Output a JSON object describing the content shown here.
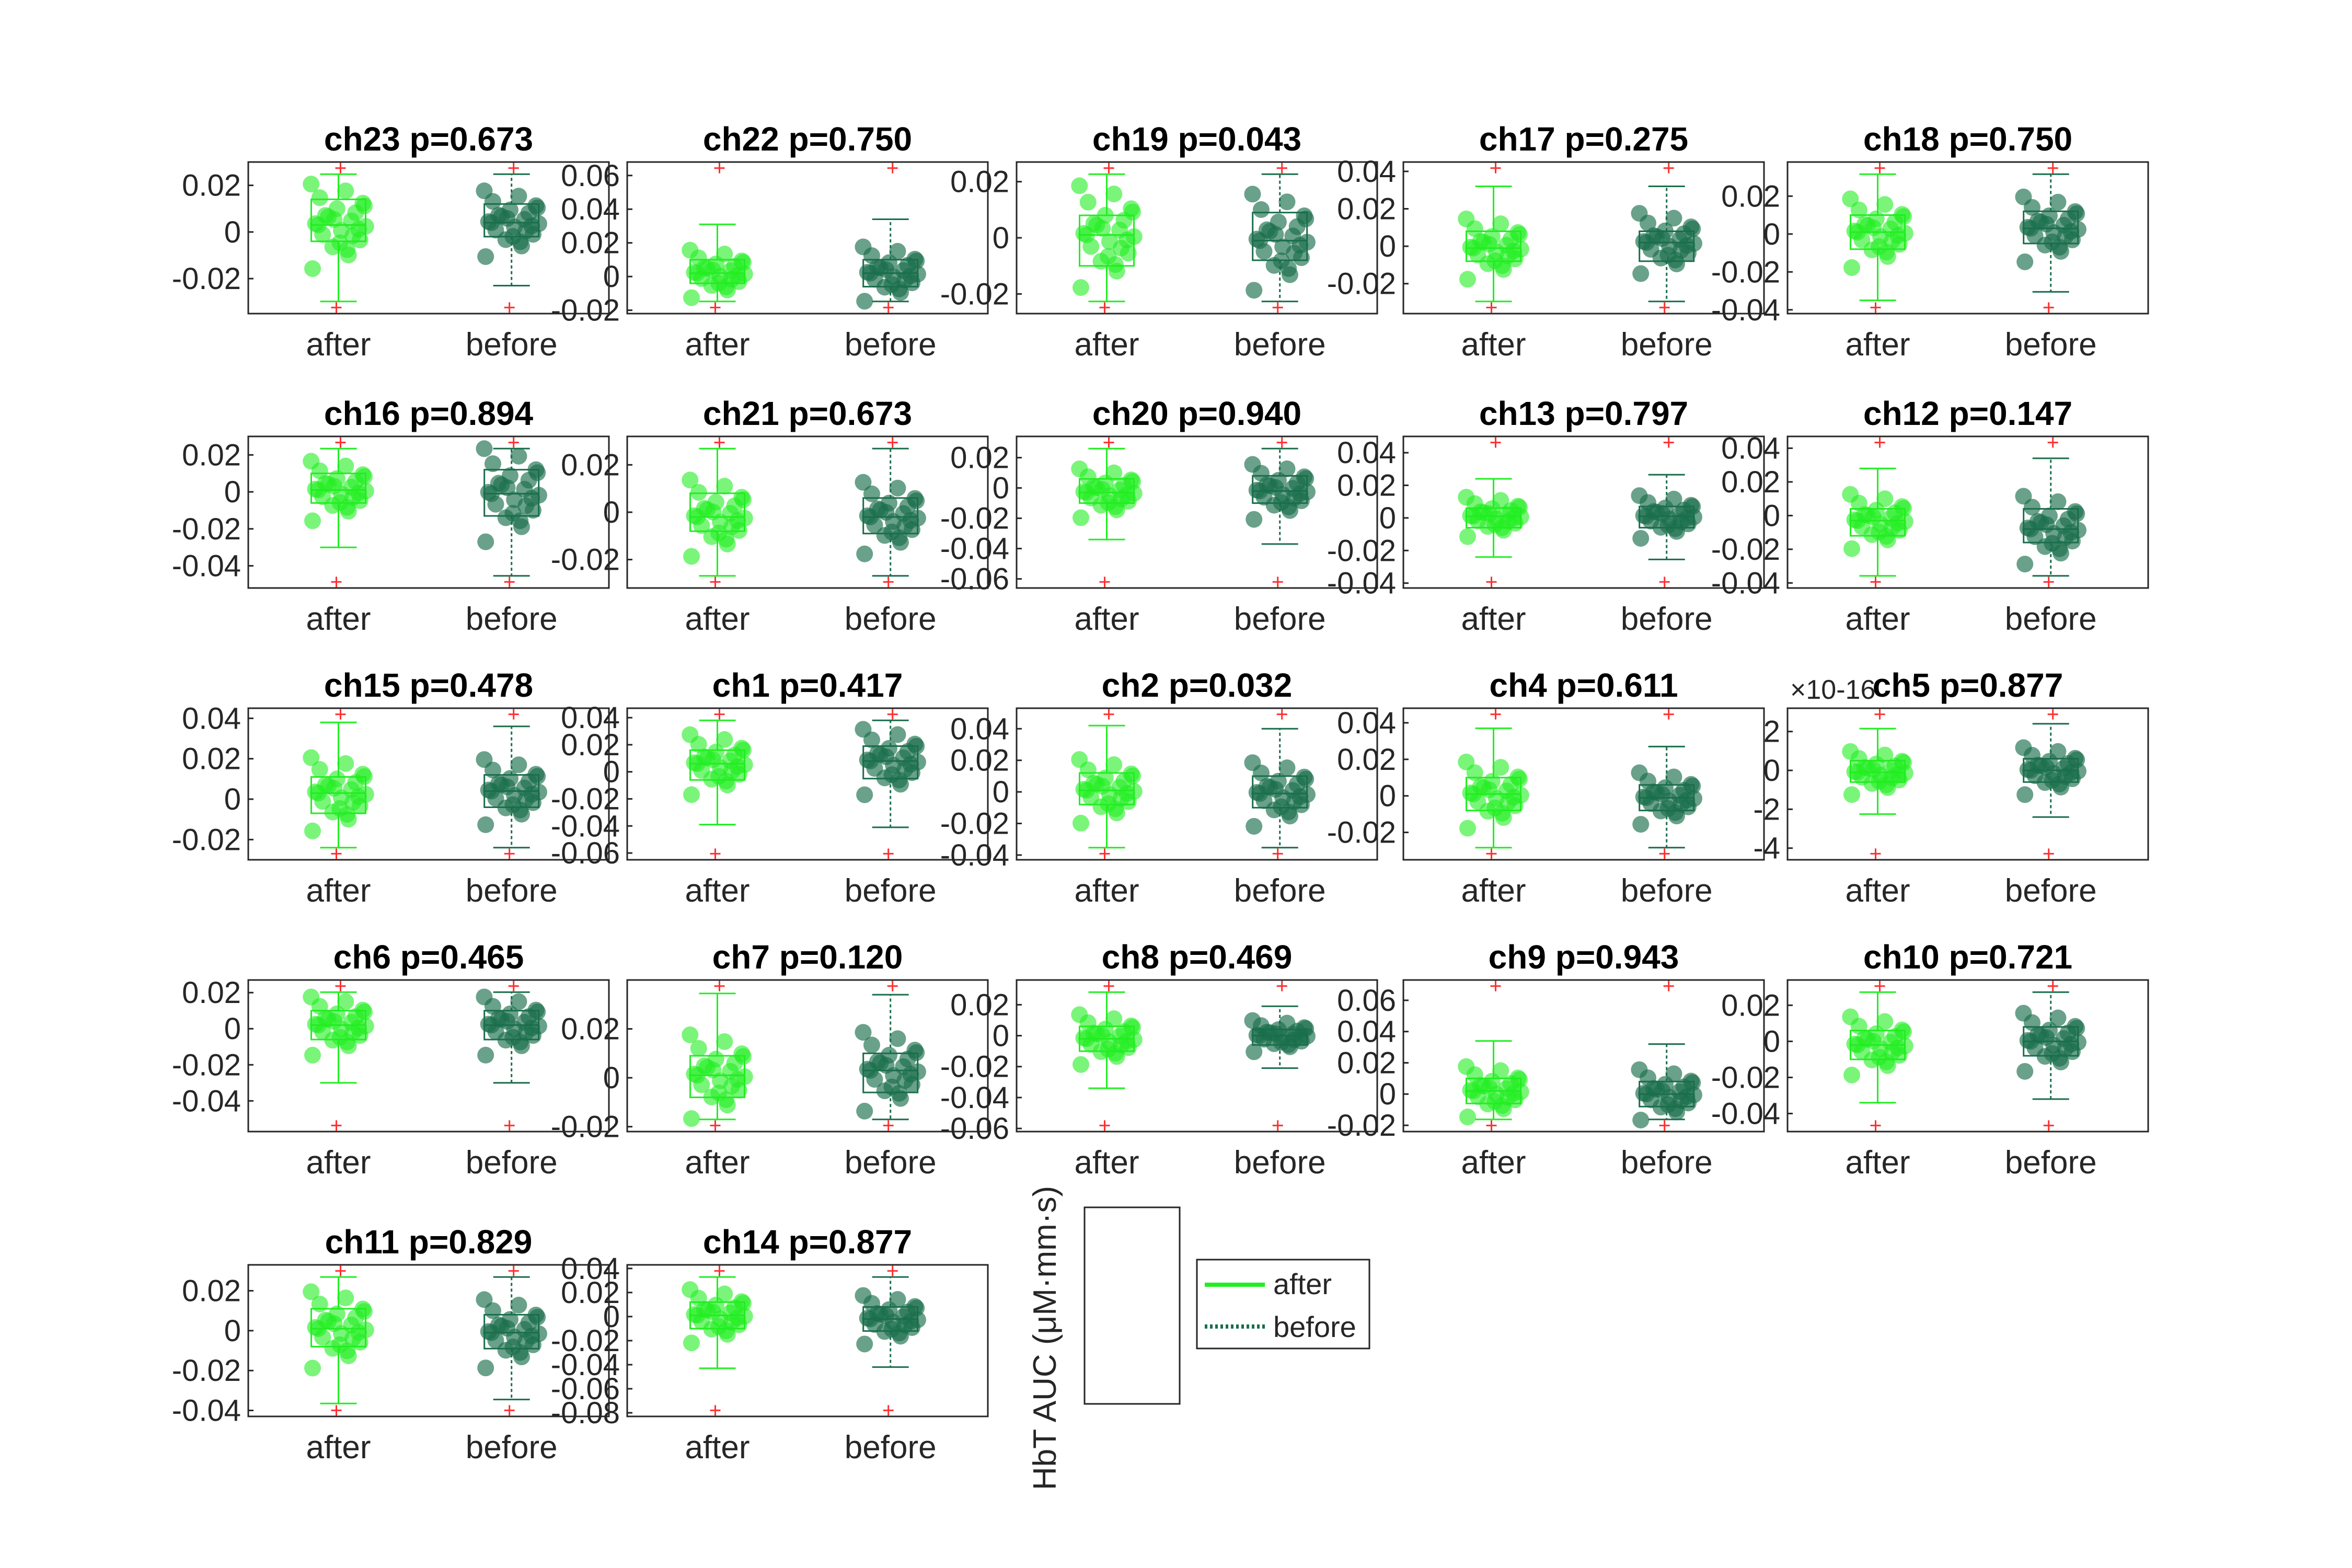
{
  "figure": {
    "ylabel": "HbT AUC (μM·mm·s)",
    "colors": {
      "after": "#22ee22",
      "before": "#1a6e4c",
      "outlier": "#ff3030",
      "axis": "#262626"
    }
  },
  "legend": {
    "entries": [
      {
        "label": "after",
        "style": "solid",
        "color": "#22ee22"
      },
      {
        "label": "before",
        "style": "dotted",
        "color": "#1a6e4c"
      }
    ]
  },
  "chart_data": [
    {
      "type": "box",
      "title": "ch23 p=0.673",
      "categories": [
        "after",
        "before"
      ],
      "ylim": [
        -0.035,
        0.03
      ],
      "yticks": [
        "0.02",
        "0",
        "-0.02"
      ],
      "ytick_values": [
        0.02,
        0,
        -0.02
      ],
      "box": {
        "after": [
          -0.004,
          0.003,
          0.014
        ],
        "before": [
          -0.002,
          0.004,
          0.012
        ]
      }
    },
    {
      "type": "box",
      "title": "ch22 p=0.750",
      "categories": [
        "after",
        "before"
      ],
      "ylim": [
        -0.022,
        0.068
      ],
      "yticks": [
        "0.06",
        "0.04",
        "0.02",
        "0",
        "-0.02"
      ],
      "ytick_values": [
        0.06,
        0.04,
        0.02,
        0,
        -0.02
      ],
      "box": {
        "after": [
          -0.004,
          0.002,
          0.01
        ],
        "before": [
          -0.006,
          0.002,
          0.01
        ]
      }
    },
    {
      "type": "box",
      "title": "ch19 p=0.043",
      "categories": [
        "after",
        "before"
      ],
      "ylim": [
        -0.027,
        0.027
      ],
      "yticks": [
        "0.02",
        "0",
        "-0.02"
      ],
      "ytick_values": [
        0.02,
        0,
        -0.02
      ],
      "box": {
        "after": [
          -0.01,
          0.001,
          0.008
        ],
        "before": [
          -0.008,
          -0.001,
          0.009
        ]
      }
    },
    {
      "type": "box",
      "title": "ch17 p=0.275",
      "categories": [
        "after",
        "before"
      ],
      "ylim": [
        -0.036,
        0.045
      ],
      "yticks": [
        "0.04",
        "0.02",
        "0",
        "-0.02"
      ],
      "ytick_values": [
        0.04,
        0.02,
        0,
        -0.02
      ],
      "box": {
        "after": [
          -0.008,
          -0.001,
          0.008
        ],
        "before": [
          -0.008,
          0.002,
          0.008
        ]
      }
    },
    {
      "type": "box",
      "title": "ch18 p=0.750",
      "categories": [
        "after",
        "before"
      ],
      "ylim": [
        -0.042,
        0.038
      ],
      "yticks": [
        "0.02",
        "0",
        "-0.02",
        "-0.04"
      ],
      "ytick_values": [
        0.02,
        0,
        -0.02,
        -0.04
      ],
      "box": {
        "after": [
          -0.008,
          0.001,
          0.01
        ],
        "before": [
          -0.005,
          0.003,
          0.012
        ]
      }
    },
    {
      "type": "box",
      "title": "ch16 p=0.894",
      "categories": [
        "after",
        "before"
      ],
      "ylim": [
        -0.052,
        0.03
      ],
      "yticks": [
        "0.02",
        "0",
        "-0.02",
        "-0.04"
      ],
      "ytick_values": [
        0.02,
        0,
        -0.02,
        -0.04
      ],
      "box": {
        "after": [
          -0.006,
          0.001,
          0.01
        ],
        "before": [
          -0.013,
          -0.001,
          0.012
        ]
      }
    },
    {
      "type": "box",
      "title": "ch21 p=0.673",
      "categories": [
        "after",
        "before"
      ],
      "ylim": [
        -0.032,
        0.032
      ],
      "yticks": [
        "0.02",
        "0",
        "-0.02"
      ],
      "ytick_values": [
        0.02,
        0,
        -0.02
      ],
      "box": {
        "after": [
          -0.008,
          -0.002,
          0.008
        ],
        "before": [
          -0.009,
          -0.002,
          0.006
        ]
      }
    },
    {
      "type": "box",
      "title": "ch20 p=0.940",
      "categories": [
        "after",
        "before"
      ],
      "ylim": [
        -0.066,
        0.034
      ],
      "yticks": [
        "0.02",
        "0",
        "-0.02",
        "-0.04",
        "-0.06"
      ],
      "ytick_values": [
        0.02,
        0,
        -0.02,
        -0.04,
        -0.06
      ],
      "box": {
        "after": [
          -0.01,
          -0.003,
          0.006
        ],
        "before": [
          -0.01,
          -0.002,
          0.008
        ]
      }
    },
    {
      "type": "box",
      "title": "ch13 p=0.797",
      "categories": [
        "after",
        "before"
      ],
      "ylim": [
        -0.043,
        0.05
      ],
      "yticks": [
        "0.04",
        "0.02",
        "0",
        "-0.02",
        "-0.04"
      ],
      "ytick_values": [
        0.04,
        0.02,
        0,
        -0.02,
        -0.04
      ],
      "box": {
        "after": [
          -0.006,
          0.001,
          0.006
        ],
        "before": [
          -0.006,
          0.001,
          0.007
        ]
      }
    },
    {
      "type": "box",
      "title": "ch12 p=0.147",
      "categories": [
        "after",
        "before"
      ],
      "ylim": [
        -0.043,
        0.047
      ],
      "yticks": [
        "0.04",
        "0.02",
        "0",
        "-0.02",
        "-0.04"
      ],
      "ytick_values": [
        0.04,
        0.02,
        0,
        -0.02,
        -0.04
      ],
      "box": {
        "after": [
          -0.012,
          -0.003,
          0.004
        ],
        "before": [
          -0.016,
          -0.008,
          0.004
        ]
      }
    },
    {
      "type": "box",
      "title": "ch15 p=0.478",
      "categories": [
        "after",
        "before"
      ],
      "ylim": [
        -0.03,
        0.045
      ],
      "yticks": [
        "0.04",
        "0.02",
        "0",
        "-0.02"
      ],
      "ytick_values": [
        0.04,
        0.02,
        0,
        -0.02
      ],
      "box": {
        "after": [
          -0.007,
          0.003,
          0.011
        ],
        "before": [
          -0.004,
          0.004,
          0.012
        ]
      }
    },
    {
      "type": "box",
      "title": "ch1 p=0.417",
      "categories": [
        "after",
        "before"
      ],
      "ylim": [
        -0.065,
        0.047
      ],
      "yticks": [
        "0.04",
        "0.02",
        "0",
        "-0.02",
        "-0.04",
        "-0.06"
      ],
      "ytick_values": [
        0.04,
        0.02,
        0,
        -0.02,
        -0.04,
        -0.06
      ],
      "box": {
        "after": [
          -0.006,
          0.006,
          0.016
        ],
        "before": [
          -0.005,
          0.008,
          0.019
        ]
      }
    },
    {
      "type": "box",
      "title": "ch2 p=0.032",
      "categories": [
        "after",
        "before"
      ],
      "ylim": [
        -0.043,
        0.053
      ],
      "yticks": [
        "0.04",
        "0.02",
        "0",
        "-0.02",
        "-0.04"
      ],
      "ytick_values": [
        0.04,
        0.02,
        0,
        -0.02,
        -0.04
      ],
      "box": {
        "after": [
          -0.008,
          0.001,
          0.012
        ],
        "before": [
          -0.01,
          -0.001,
          0.01
        ]
      }
    },
    {
      "type": "box",
      "title": "ch4 p=0.611",
      "categories": [
        "after",
        "before"
      ],
      "ylim": [
        -0.035,
        0.048
      ],
      "yticks": [
        "0.04",
        "0.02",
        "0",
        "-0.02"
      ],
      "ytick_values": [
        0.04,
        0.02,
        0,
        -0.02
      ],
      "box": {
        "after": [
          -0.008,
          0.001,
          0.01
        ],
        "before": [
          -0.008,
          -0.001,
          0.006
        ]
      }
    },
    {
      "type": "box",
      "title": "ch5 p=0.877",
      "yexponent": "×10-16",
      "categories": [
        "after",
        "before"
      ],
      "ylim": [
        -4.6,
        3.2
      ],
      "yticks": [
        "2",
        "0",
        "-2",
        "-4"
      ],
      "ytick_values": [
        2,
        0,
        -2,
        -4
      ],
      "box": {
        "after": [
          -0.6,
          -0.1,
          0.5
        ],
        "before": [
          -0.6,
          0,
          0.6
        ]
      }
    },
    {
      "type": "box",
      "title": "ch6 p=0.465",
      "categories": [
        "after",
        "before"
      ],
      "ylim": [
        -0.057,
        0.027
      ],
      "yticks": [
        "0.02",
        "0",
        "-0.02",
        "-0.04"
      ],
      "ytick_values": [
        0.02,
        0,
        -0.02,
        -0.04
      ],
      "box": {
        "after": [
          -0.006,
          0.002,
          0.01
        ],
        "before": [
          -0.006,
          0.002,
          0.01
        ]
      }
    },
    {
      "type": "box",
      "title": "ch7 p=0.120",
      "categories": [
        "after",
        "before"
      ],
      "ylim": [
        -0.022,
        0.04
      ],
      "yticks": [
        "0.02",
        "0",
        "-0.02"
      ],
      "ytick_values": [
        0.02,
        0,
        -0.02
      ],
      "box": {
        "after": [
          -0.008,
          0.001,
          0.009
        ],
        "before": [
          -0.006,
          0.003,
          0.01
        ]
      }
    },
    {
      "type": "box",
      "title": "ch8 p=0.469",
      "categories": [
        "after",
        "before"
      ],
      "ylim": [
        -0.062,
        0.036
      ],
      "yticks": [
        "0.02",
        "0",
        "-0.02",
        "-0.04",
        "-0.06"
      ],
      "ytick_values": [
        0.02,
        0,
        -0.02,
        -0.04,
        -0.06
      ],
      "box": {
        "after": [
          -0.01,
          -0.002,
          0.006
        ],
        "before": [
          -0.006,
          0,
          0.004
        ]
      }
    },
    {
      "type": "box",
      "title": "ch9 p=0.943",
      "categories": [
        "after",
        "before"
      ],
      "ylim": [
        -0.024,
        0.073
      ],
      "yticks": [
        "0.06",
        "0.04",
        "0.02",
        "0",
        "-0.02"
      ],
      "ytick_values": [
        0.06,
        0.04,
        0.02,
        0,
        -0.02
      ],
      "box": {
        "after": [
          -0.006,
          0.002,
          0.01
        ],
        "before": [
          -0.008,
          0,
          0.008
        ]
      }
    },
    {
      "type": "box",
      "title": "ch10 p=0.721",
      "categories": [
        "after",
        "before"
      ],
      "ylim": [
        -0.05,
        0.034
      ],
      "yticks": [
        "0.02",
        "0",
        "-0.02",
        "-0.04"
      ],
      "ytick_values": [
        0.02,
        0,
        -0.02,
        -0.04
      ],
      "box": {
        "after": [
          -0.01,
          -0.002,
          0.006
        ],
        "before": [
          -0.008,
          0,
          0.008
        ]
      }
    },
    {
      "type": "box",
      "title": "ch11 p=0.829",
      "categories": [
        "after",
        "before"
      ],
      "ylim": [
        -0.043,
        0.033
      ],
      "yticks": [
        "0.02",
        "0",
        "-0.02",
        "-0.04"
      ],
      "ytick_values": [
        0.02,
        0,
        -0.02,
        -0.04
      ],
      "box": {
        "after": [
          -0.008,
          0.001,
          0.011
        ],
        "before": [
          -0.009,
          -0.001,
          0.008
        ]
      }
    },
    {
      "type": "box",
      "title": "ch14 p=0.877",
      "categories": [
        "after",
        "before"
      ],
      "ylim": [
        -0.083,
        0.043
      ],
      "yticks": [
        "0.04",
        "0.02",
        "0",
        "-0.02",
        "-0.04",
        "-0.06",
        "-0.08"
      ],
      "ytick_values": [
        0.04,
        0.02,
        0,
        -0.02,
        -0.04,
        -0.06,
        -0.08
      ],
      "box": {
        "after": [
          -0.01,
          0.001,
          0.012
        ],
        "before": [
          -0.012,
          -0.002,
          0.008
        ]
      }
    }
  ]
}
